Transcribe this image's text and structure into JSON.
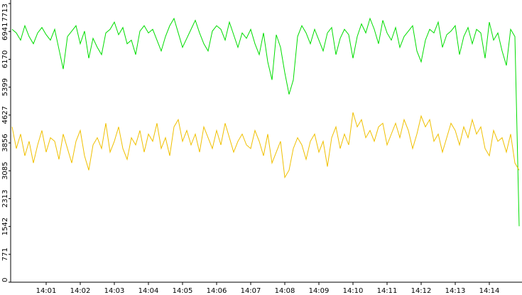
{
  "chart_data": {
    "type": "line",
    "categories": [
      null,
      null,
      null,
      null,
      null,
      null,
      null,
      null,
      "14:01",
      null,
      null,
      null,
      null,
      null,
      null,
      null,
      "14:02",
      null,
      null,
      null,
      null,
      null,
      null,
      null,
      "14:03",
      null,
      null,
      null,
      null,
      null,
      null,
      null,
      "14:04",
      null,
      null,
      null,
      null,
      null,
      null,
      null,
      "14:05",
      null,
      null,
      null,
      null,
      null,
      null,
      null,
      "14:06",
      null,
      null,
      null,
      null,
      null,
      null,
      null,
      "14:07",
      null,
      null,
      null,
      null,
      null,
      null,
      null,
      "14:08",
      null,
      null,
      null,
      null,
      null,
      null,
      null,
      "14:09",
      null,
      null,
      null,
      null,
      null,
      null,
      null,
      "14:10",
      null,
      null,
      null,
      null,
      null,
      null,
      null,
      "14:11",
      null,
      null,
      null,
      null,
      null,
      null,
      null,
      "14:12",
      null,
      null,
      null,
      null,
      null,
      null,
      null,
      "14:13",
      null,
      null,
      null,
      null,
      null,
      null,
      null,
      "14:14",
      null,
      null,
      null,
      null,
      null,
      null,
      null
    ],
    "series": [
      {
        "color": "#00dd00",
        "values": [
          7000,
          6900,
          6700,
          7100,
          6800,
          6600,
          6900,
          7050,
          6850,
          6700,
          7000,
          6450,
          5900,
          6800,
          6950,
          7100,
          6600,
          6950,
          6200,
          6750,
          6500,
          6300,
          6900,
          7000,
          7200,
          6850,
          7050,
          6600,
          6700,
          6300,
          6950,
          7100,
          6900,
          7000,
          6700,
          6400,
          6800,
          7100,
          7300,
          6900,
          6500,
          6750,
          7000,
          7250,
          6900,
          6600,
          6400,
          6950,
          7100,
          7000,
          6700,
          7200,
          6850,
          6500,
          6900,
          6750,
          7000,
          6600,
          6300,
          6900,
          6100,
          5600,
          6850,
          6500,
          5800,
          5200,
          5600,
          6800,
          7100,
          6900,
          6600,
          7000,
          6700,
          6400,
          6900,
          7050,
          6300,
          6750,
          7000,
          6850,
          6200,
          6800,
          7150,
          6900,
          7300,
          7000,
          6600,
          7250,
          6900,
          6700,
          7050,
          6500,
          6800,
          6950,
          7100,
          6400,
          6100,
          6700,
          7000,
          6900,
          7200,
          6500,
          6850,
          6950,
          7100,
          6300,
          6800,
          7050,
          6600,
          7000,
          6900,
          6200,
          7200,
          6700,
          6900,
          6400,
          6000,
          7000,
          6800,
          1550
        ]
      },
      {
        "color": "#f0c000",
        "values": [
          4300,
          3700,
          4100,
          3500,
          3900,
          3300,
          3800,
          4200,
          3600,
          4000,
          3900,
          3400,
          4100,
          3700,
          3300,
          3900,
          4200,
          3500,
          3100,
          3800,
          4000,
          3700,
          4400,
          3600,
          3900,
          4300,
          3700,
          3400,
          4000,
          3800,
          4200,
          3600,
          4100,
          3900,
          4400,
          3700,
          4000,
          3500,
          4300,
          4500,
          3900,
          4200,
          3800,
          4100,
          3600,
          4300,
          4000,
          3700,
          4200,
          3800,
          4400,
          4000,
          3600,
          3900,
          4100,
          3800,
          3700,
          4200,
          3900,
          3500,
          4100,
          3300,
          3600,
          3900,
          2900,
          3100,
          3700,
          4000,
          3800,
          3400,
          3900,
          4100,
          3600,
          3900,
          3200,
          4000,
          4300,
          3700,
          4100,
          3800,
          4700,
          4300,
          4500,
          4000,
          4200,
          3900,
          4300,
          4400,
          3800,
          4100,
          4400,
          4000,
          4500,
          4200,
          3700,
          4100,
          4600,
          4300,
          4500,
          3900,
          4100,
          3600,
          4000,
          4400,
          4200,
          3800,
          4300,
          4000,
          4500,
          4100,
          4300,
          3700,
          3500,
          4200,
          3900,
          4000,
          3600,
          4100,
          3300,
          3100
        ]
      }
    ],
    "ylim": [
      0,
      7713
    ],
    "yticks": [
      0,
      771,
      1542,
      2313,
      3085,
      3856,
      4627,
      5399,
      6170,
      6941,
      7713
    ]
  }
}
